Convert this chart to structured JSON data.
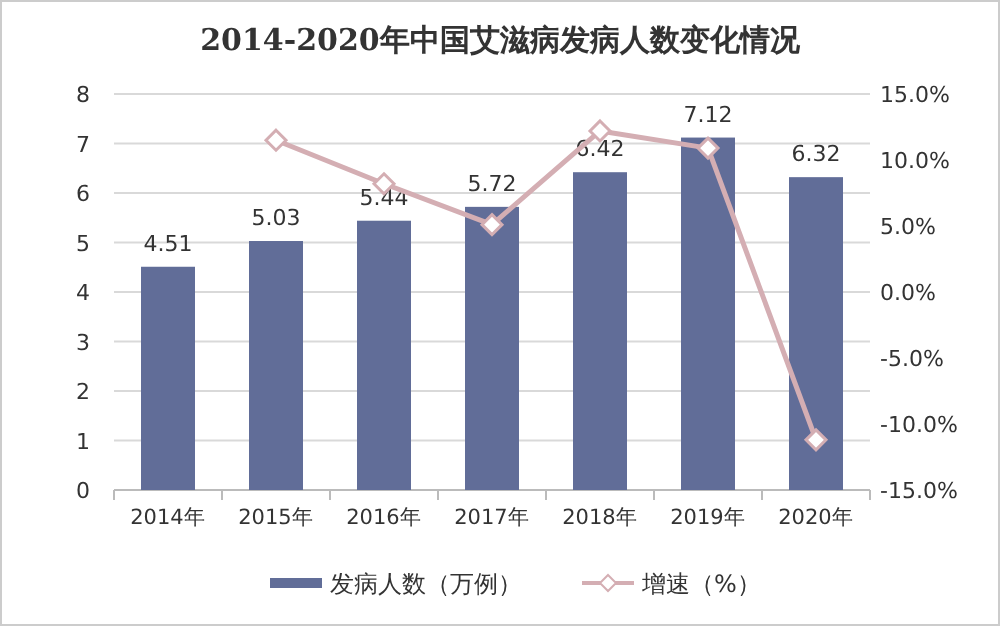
{
  "chart_data": {
    "type": "bar",
    "title": "2014-2020年中国艾滋病发病人数变化情况",
    "categories": [
      "2014年",
      "2015年",
      "2016年",
      "2017年",
      "2018年",
      "2019年",
      "2020年"
    ],
    "series": [
      {
        "name": "发病人数（万例）",
        "color": "#616d98",
        "values": [
          4.51,
          5.03,
          5.44,
          5.72,
          6.42,
          7.12,
          6.32
        ],
        "value_labels": [
          "4.51",
          "5.03",
          "5.44",
          "5.72",
          "6.42",
          "7.12",
          "6.32"
        ]
      },
      {
        "name": "增速（%）",
        "type": "line",
        "axis": "y2",
        "color": "#d4aeb3",
        "values": [
          null,
          11.5,
          8.2,
          5.1,
          12.2,
          10.9,
          -11.2
        ]
      }
    ],
    "ylim": [
      0,
      8
    ],
    "yticks": [
      0,
      1,
      2,
      3,
      4,
      5,
      6,
      7,
      8
    ],
    "y2lim": [
      -15,
      15
    ],
    "y2ticks": [
      {
        "value": -15,
        "label": "-15.0%"
      },
      {
        "value": -10,
        "label": "-10.0%"
      },
      {
        "value": -5,
        "label": "-5.0%"
      },
      {
        "value": 0,
        "label": "0.0%"
      },
      {
        "value": 5,
        "label": "5.0%"
      },
      {
        "value": 10,
        "label": "10.0%"
      },
      {
        "value": 15,
        "label": "15.0%"
      }
    ],
    "grid": "y",
    "legend": "bottom",
    "marker": "diamond"
  }
}
